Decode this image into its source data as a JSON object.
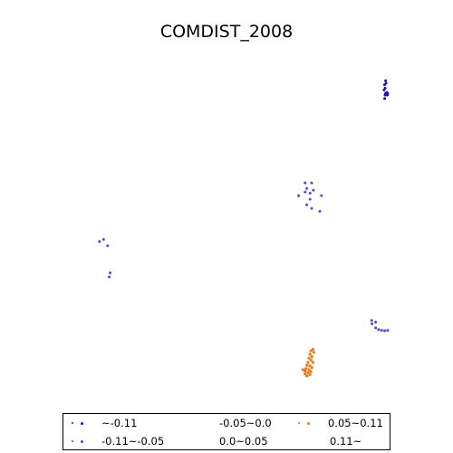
{
  "title": "COMDIST_2008",
  "legend": [
    {
      "label": "~-0.11",
      "color": "#2a0fb0"
    },
    {
      "label": "-0.11~-0.05",
      "color": "#5a3ee8"
    },
    {
      "label": "-0.05~0.0",
      "color": ""
    },
    {
      "label": "0.0~0.05",
      "color": ""
    },
    {
      "label": "0.05~0.11",
      "color": "#f07818"
    },
    {
      "label": "0.11~",
      "color": ""
    }
  ],
  "point_groups": [
    {
      "class": 0,
      "region": "northeast",
      "points": [
        [
          0.9,
          0.08
        ],
        [
          0.92,
          0.15
        ],
        [
          0.85,
          0.2
        ],
        [
          0.88,
          0.3
        ],
        [
          0.83,
          0.35
        ],
        [
          0.95,
          0.42
        ],
        [
          0.9,
          0.45
        ],
        [
          0.98,
          0.5
        ],
        [
          1.0,
          0.45
        ],
        [
          0.87,
          0.5
        ],
        [
          0.86,
          0.6
        ]
      ]
    },
    {
      "class": 1,
      "region": "center",
      "points": [
        [
          0.3,
          0.1
        ],
        [
          0.5,
          0.1
        ],
        [
          0.35,
          0.25
        ],
        [
          0.55,
          0.3
        ],
        [
          0.3,
          0.35
        ],
        [
          0.45,
          0.38
        ],
        [
          0.1,
          0.45
        ],
        [
          0.8,
          0.45
        ],
        [
          0.45,
          0.55
        ],
        [
          0.35,
          0.7
        ],
        [
          0.5,
          0.8
        ],
        [
          0.75,
          0.88
        ]
      ]
    },
    {
      "class": 1,
      "region": "west",
      "points": [
        [
          0.1,
          0.1
        ],
        [
          0.35,
          0.05
        ],
        [
          0.6,
          0.2
        ],
        [
          0.75,
          0.85
        ],
        [
          0.7,
          0.95
        ]
      ]
    },
    {
      "class": 1,
      "region": "southeast",
      "points": [
        [
          0.1,
          0.1
        ],
        [
          0.12,
          0.3
        ],
        [
          0.3,
          0.2
        ],
        [
          0.3,
          0.55
        ],
        [
          0.45,
          0.65
        ],
        [
          0.6,
          0.7
        ],
        [
          0.75,
          0.72
        ],
        [
          0.9,
          0.7
        ]
      ]
    },
    {
      "class": 4,
      "region": "south",
      "points": [
        [
          0.7,
          0.05
        ],
        [
          0.6,
          0.1
        ],
        [
          0.75,
          0.15
        ],
        [
          0.55,
          0.22
        ],
        [
          0.65,
          0.3
        ],
        [
          0.5,
          0.35
        ],
        [
          0.6,
          0.42
        ],
        [
          0.45,
          0.5
        ],
        [
          0.7,
          0.5
        ],
        [
          0.4,
          0.6
        ],
        [
          0.55,
          0.62
        ],
        [
          0.65,
          0.68
        ],
        [
          0.35,
          0.72
        ],
        [
          0.5,
          0.75
        ],
        [
          0.2,
          0.75
        ],
        [
          0.3,
          0.8
        ],
        [
          0.6,
          0.82
        ],
        [
          0.45,
          0.85
        ],
        [
          0.3,
          0.9
        ],
        [
          0.55,
          0.92
        ],
        [
          0.4,
          0.97
        ]
      ]
    }
  ]
}
